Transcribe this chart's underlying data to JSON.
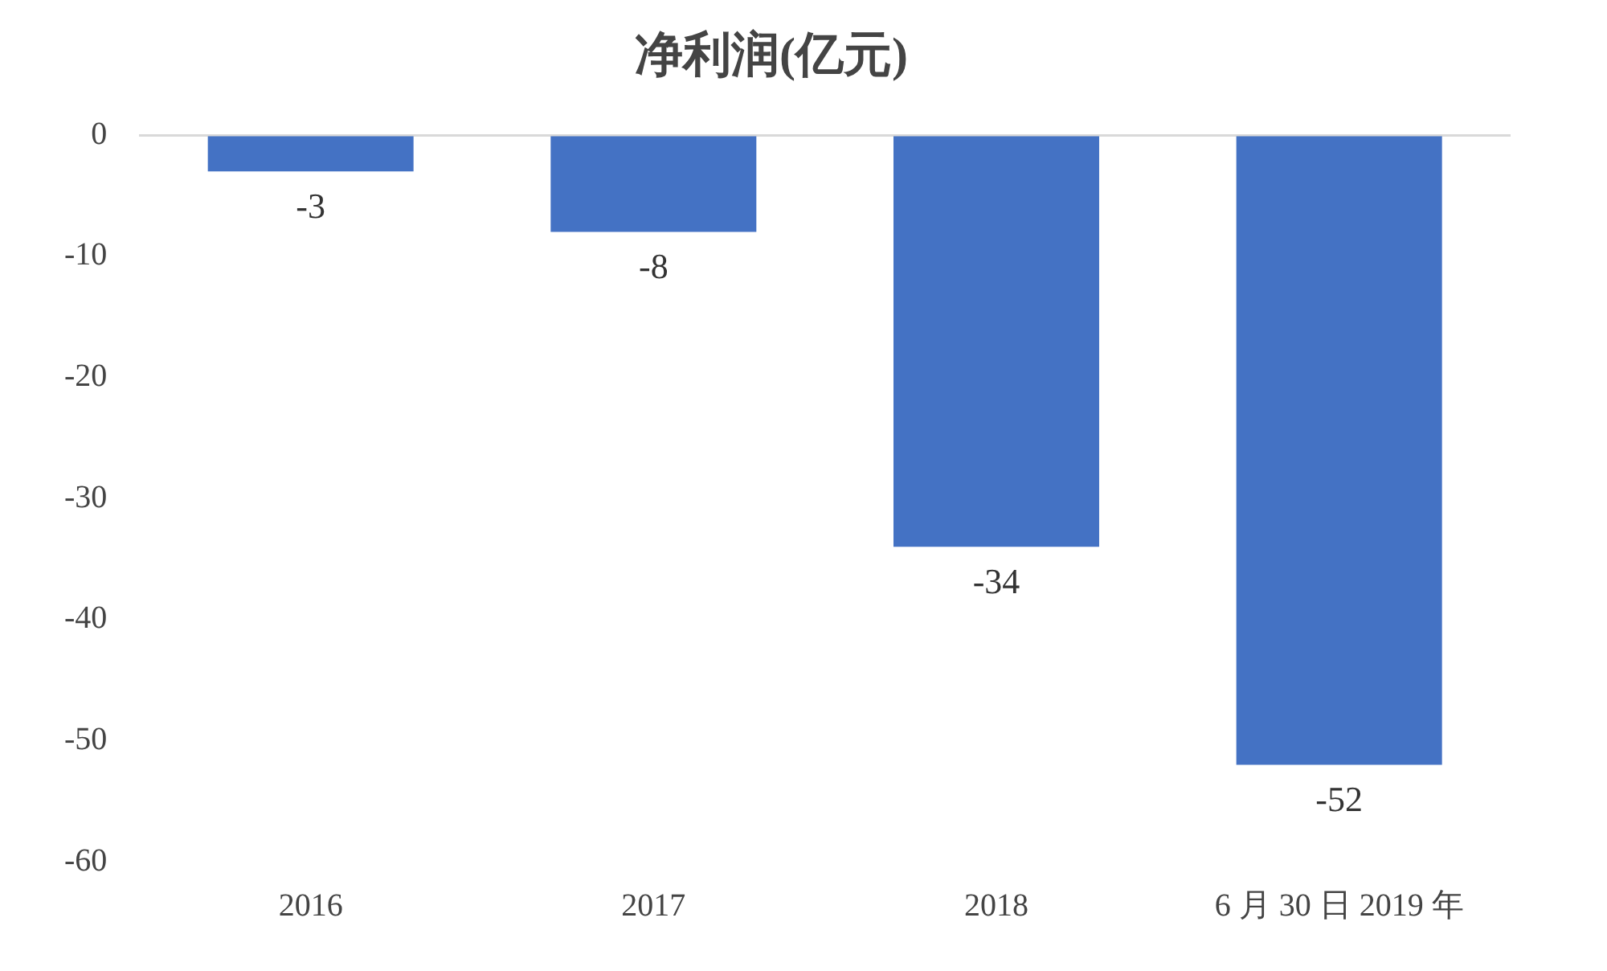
{
  "chart_data": {
    "type": "bar",
    "title": "净利润(亿元)",
    "categories": [
      "2016",
      "2017",
      "2018",
      "6 月 30 日 2019 年"
    ],
    "values": [
      -3,
      -8,
      -34,
      -52
    ],
    "color": "#4472c4",
    "ylim": [
      -60,
      0
    ],
    "yticks": [
      0,
      -10,
      -20,
      -30,
      -40,
      -50,
      -60
    ],
    "grid": false,
    "legend": false,
    "data_labels": true
  }
}
